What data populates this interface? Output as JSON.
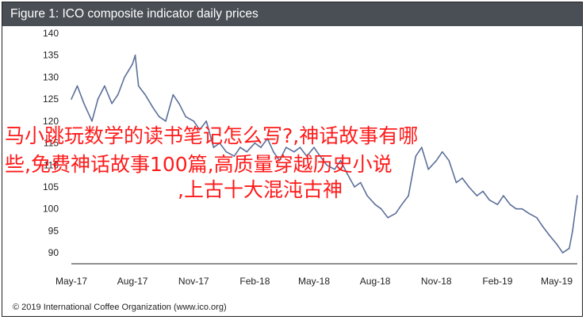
{
  "title": "Figure 1: ICO composite indicator daily prices",
  "footer": "© 2019 International Coffee Organization (www.ico.org)",
  "overlay_lines": [
    "马小跳玩数学的读书笔记怎么写?,神话故事有哪",
    "些,免费神话故事100篇,高质量穿越历史小说",
    ",上古十大混沌古神"
  ],
  "colors": {
    "title_bar": "#4a4f56",
    "line": "#5c6f99",
    "overlay_text": "#ff1a1a"
  },
  "chart_data": {
    "type": "line",
    "title": "Figure 1: ICO composite indicator daily prices",
    "xlabel": "",
    "ylabel": "",
    "x_ticks": [
      "May-17",
      "Aug-17",
      "Nov-17",
      "Feb-18",
      "May-18",
      "Aug-18",
      "Nov-18",
      "Feb-19",
      "May-19"
    ],
    "y_ticks": [
      90,
      95,
      100,
      105,
      110,
      115,
      120,
      125,
      130,
      135,
      140
    ],
    "ylim": [
      87.5,
      140
    ],
    "grid": false,
    "legend": "none",
    "series": [
      {
        "x": [
          "2017-05-01",
          "2017-05-10",
          "2017-05-20",
          "2017-06-01",
          "2017-06-10",
          "2017-06-20",
          "2017-07-01",
          "2017-07-10",
          "2017-07-20",
          "2017-08-01",
          "2017-08-05",
          "2017-08-10",
          "2017-08-20",
          "2017-09-01",
          "2017-09-10",
          "2017-09-20",
          "2017-10-01",
          "2017-10-10",
          "2017-10-20",
          "2017-11-01",
          "2017-11-10",
          "2017-11-20",
          "2017-12-01",
          "2017-12-10",
          "2017-12-20",
          "2018-01-01",
          "2018-01-10",
          "2018-01-20",
          "2018-02-01",
          "2018-02-10",
          "2018-02-20",
          "2018-03-01",
          "2018-03-10",
          "2018-03-20",
          "2018-04-01",
          "2018-04-10",
          "2018-04-20",
          "2018-05-01",
          "2018-05-10",
          "2018-05-20",
          "2018-06-01",
          "2018-06-10",
          "2018-06-20",
          "2018-07-01",
          "2018-07-10",
          "2018-07-20",
          "2018-08-01",
          "2018-08-10",
          "2018-08-20",
          "2018-09-01",
          "2018-09-10",
          "2018-09-20",
          "2018-10-01",
          "2018-10-10",
          "2018-10-20",
          "2018-11-01",
          "2018-11-10",
          "2018-11-20",
          "2018-12-01",
          "2018-12-10",
          "2018-12-20",
          "2019-01-01",
          "2019-01-10",
          "2019-01-20",
          "2019-02-01",
          "2019-02-10",
          "2019-02-20",
          "2019-03-01",
          "2019-03-10",
          "2019-03-20",
          "2019-04-01",
          "2019-04-10",
          "2019-04-20",
          "2019-05-01",
          "2019-05-10",
          "2019-05-20",
          "2019-05-25",
          "2019-06-01"
        ],
        "y": [
          125,
          128,
          124,
          120,
          125,
          128,
          124,
          126,
          130,
          133,
          135,
          128,
          126,
          123,
          121,
          120,
          126,
          124,
          121,
          120,
          118,
          120,
          114,
          115,
          113,
          112,
          114,
          113,
          115,
          114,
          116,
          113,
          111,
          114,
          113,
          114,
          112,
          114,
          112,
          110,
          109,
          111,
          108,
          105,
          106,
          103,
          101,
          100,
          98,
          99,
          101,
          103,
          112,
          114,
          109,
          111,
          113,
          111,
          106,
          107,
          105,
          103,
          104,
          102,
          101,
          103,
          101,
          100,
          100,
          99,
          98,
          96,
          94,
          92,
          90,
          91,
          95,
          103
        ]
      }
    ]
  }
}
